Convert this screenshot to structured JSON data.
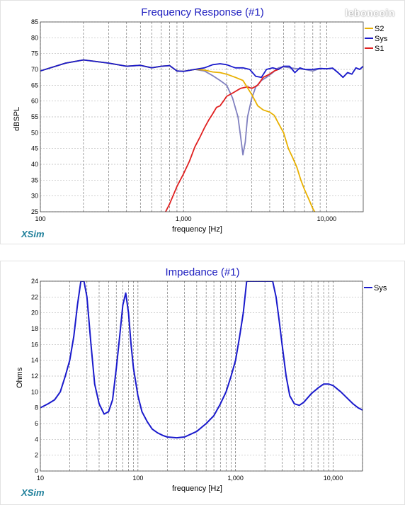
{
  "watermark": "leboncoin",
  "chart_data": [
    {
      "type": "line",
      "title": "Frequency Response (#1)",
      "xlabel": "frequency [Hz]",
      "ylabel": "dBSPL",
      "xscale": "log",
      "xlim": [
        100,
        18000
      ],
      "ylim": [
        25,
        85
      ],
      "xticks": [
        {
          "value": 100,
          "label": "100"
        },
        {
          "value": 1000,
          "label": "1,000"
        },
        {
          "value": 10000,
          "label": "10,000"
        }
      ],
      "yticks": [
        25,
        30,
        35,
        40,
        45,
        50,
        55,
        60,
        65,
        70,
        75,
        80,
        85
      ],
      "grid": true,
      "legend_position": "top-right",
      "brand": "XSim",
      "series": [
        {
          "name": "S2",
          "color": "#e8b000",
          "x": [
            100,
            150,
            200,
            300,
            400,
            500,
            600,
            700,
            800,
            900,
            1000,
            1200,
            1400,
            1600,
            1800,
            2000,
            2300,
            2600,
            3000,
            3300,
            3600,
            4000,
            4300,
            4600,
            5000,
            5400,
            5800,
            6200,
            6600,
            7000,
            7500,
            8000,
            8500
          ],
          "y": [
            69.5,
            72,
            73,
            72,
            71,
            71.3,
            70.5,
            71,
            71.2,
            69.5,
            69.4,
            70,
            69.8,
            69.2,
            69,
            68.5,
            67.5,
            66.5,
            62,
            58.5,
            57.2,
            56.5,
            55.5,
            53,
            50,
            45,
            42,
            39,
            35,
            32,
            29,
            26,
            24
          ]
        },
        {
          "name": "Sys",
          "color": "#1a1acc",
          "x": [
            100,
            150,
            200,
            300,
            400,
            500,
            600,
            700,
            800,
            900,
            1000,
            1200,
            1400,
            1600,
            1800,
            2000,
            2300,
            2600,
            2900,
            3200,
            3500,
            3800,
            4200,
            4600,
            5000,
            5500,
            6000,
            6500,
            7000,
            8000,
            9000,
            10000,
            11000,
            12000,
            13000,
            14000,
            15000,
            16000,
            17000,
            18000
          ],
          "y": [
            69.5,
            72,
            73,
            72,
            71,
            71.3,
            70.5,
            71,
            71.2,
            69.5,
            69.4,
            70,
            70.5,
            71.5,
            71.8,
            71.5,
            70.5,
            70.5,
            70,
            67.8,
            67.5,
            70,
            70.5,
            70,
            71,
            71,
            69,
            70.5,
            70,
            70,
            70.3,
            70.2,
            70.4,
            69,
            67.5,
            69,
            68.5,
            70.5,
            70,
            71
          ]
        },
        {
          "name": "S1",
          "color": "#e02020",
          "x": [
            750,
            800,
            900,
            1000,
            1100,
            1200,
            1300,
            1400,
            1500,
            1600,
            1700,
            1800,
            1900,
            2000,
            2200,
            2500,
            2800,
            3000,
            3300,
            3600,
            4000,
            4300,
            4600,
            5000
          ],
          "y": [
            25,
            27.5,
            33,
            37,
            41,
            45.5,
            48.5,
            51.5,
            54,
            56,
            58,
            58.5,
            60,
            61.5,
            62.5,
            64,
            64.5,
            64,
            65,
            67.5,
            68.5,
            69.5,
            70,
            71
          ]
        },
        {
          "name": "",
          "color": "#8080c0",
          "x": [
            100,
            150,
            200,
            300,
            400,
            500,
            600,
            700,
            800,
            900,
            1000,
            1200,
            1400,
            1600,
            1800,
            2000,
            2200,
            2400,
            2500,
            2600,
            2700,
            2800,
            3000,
            3200,
            3500,
            3800,
            4200,
            4600,
            5000,
            6000,
            7000,
            8000,
            9000,
            10000,
            11000,
            12000,
            13000,
            14000,
            15000,
            16000,
            17000,
            18000
          ],
          "y": [
            69.5,
            72,
            73,
            72,
            71,
            71.3,
            70.5,
            71,
            71.2,
            69.5,
            69.4,
            70,
            69.5,
            68,
            66.5,
            65,
            61,
            55,
            49,
            43,
            47,
            55,
            61,
            64.5,
            66.5,
            67.5,
            69,
            70.5,
            70.8,
            70.3,
            70,
            69.5,
            70.3,
            70.2,
            70.4,
            69,
            67.5,
            69,
            68.5,
            70.5,
            70,
            71
          ]
        }
      ]
    },
    {
      "type": "line",
      "title": "Impedance (#1)",
      "xlabel": "frequency [Hz]",
      "ylabel": "Ohms",
      "xscale": "log",
      "xlim": [
        10,
        20000
      ],
      "ylim": [
        0,
        24
      ],
      "xticks": [
        {
          "value": 10,
          "label": "10"
        },
        {
          "value": 100,
          "label": "100"
        },
        {
          "value": 1000,
          "label": "1,000"
        },
        {
          "value": 10000,
          "label": "10,000"
        }
      ],
      "yticks": [
        0,
        2,
        4,
        6,
        8,
        10,
        12,
        14,
        16,
        18,
        20,
        22,
        24
      ],
      "grid": true,
      "legend_position": "top-right",
      "brand": "XSim",
      "series": [
        {
          "name": "Sys",
          "color": "#1a1acc",
          "x": [
            10,
            12,
            14,
            16,
            18,
            20,
            22,
            24,
            26,
            28,
            30,
            33,
            36,
            40,
            45,
            50,
            55,
            60,
            65,
            70,
            75,
            80,
            85,
            90,
            100,
            110,
            125,
            140,
            160,
            180,
            200,
            250,
            300,
            400,
            500,
            600,
            700,
            800,
            900,
            1000,
            1100,
            1200,
            1300,
            1400,
            1500,
            1600,
            2200,
            2400,
            2600,
            2800,
            3000,
            3300,
            3600,
            4000,
            4500,
            5000,
            6000,
            7000,
            8000,
            9000,
            10000,
            12000,
            14000,
            16000,
            18000,
            20000
          ],
          "y": [
            8,
            8.5,
            9,
            10,
            12,
            14,
            17,
            21,
            24,
            24,
            22,
            16,
            11,
            8.5,
            7.2,
            7.5,
            9,
            13,
            17,
            21,
            22.5,
            20,
            16,
            13,
            9.5,
            7.5,
            6.2,
            5.3,
            4.8,
            4.5,
            4.3,
            4.2,
            4.3,
            5,
            6,
            7,
            8.5,
            10,
            12,
            14,
            17,
            20,
            24,
            24,
            24,
            24,
            24,
            24,
            22,
            19,
            16,
            12,
            9.5,
            8.5,
            8.3,
            8.7,
            9.8,
            10.5,
            11,
            11,
            10.8,
            10,
            9.2,
            8.5,
            8,
            7.7
          ]
        }
      ]
    }
  ]
}
